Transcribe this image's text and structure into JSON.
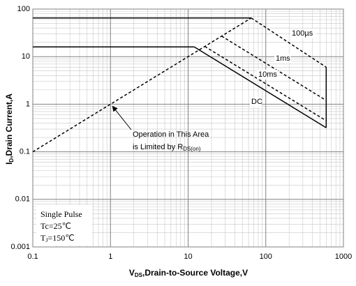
{
  "chart_data": {
    "type": "line",
    "xlabel": {
      "main": "V",
      "sub": "DS",
      "rest": ",Drain-to-Source Voltage,V"
    },
    "ylabel": {
      "main": "I",
      "sub": "D",
      "rest": ",Drain Current,A"
    },
    "log_x": true,
    "log_y": true,
    "grid": true,
    "xlim": [
      0.1,
      1000
    ],
    "ylim": [
      0.001,
      100
    ],
    "xticks": [
      0.1,
      1,
      10,
      100,
      1000
    ],
    "yticks": [
      0.001,
      0.01,
      0.1,
      1,
      10,
      100
    ],
    "series": [
      {
        "color": "#000000",
        "x": [
          0.1,
          65
        ],
        "values": [
          0.1,
          65
        ],
        "dashed": [
          true
        ]
      },
      {
        "name": "100µs",
        "color": "#000000",
        "x": [
          0.1,
          65,
          600,
          600
        ],
        "values": [
          65,
          65,
          6,
          0.32
        ],
        "dashed": [
          false,
          true,
          false
        ]
      },
      {
        "name": "1ms",
        "color": "#000000",
        "x": [
          27,
          600
        ],
        "values": [
          27,
          1.2
        ],
        "dashed": [
          true
        ]
      },
      {
        "name": "10ms",
        "color": "#000000",
        "x": [
          16.4,
          600
        ],
        "values": [
          16.4,
          0.45
        ],
        "dashed": [
          true
        ]
      },
      {
        "name": "DC",
        "color": "#000000",
        "x": [
          0.1,
          12,
          600
        ],
        "values": [
          16,
          16,
          0.32
        ],
        "dashed": [
          false,
          false
        ]
      }
    ],
    "annotation": {
      "line1": "Operation in This Area",
      "line2": "is Limited by R",
      "sub": "DS(on)",
      "x": 1,
      "y": 1
    },
    "conditions": {
      "line1": "Single Pulse",
      "line2": "Tc=25℃",
      "line3_main": "T",
      "line3_sub": "J",
      "line3_rest": "=150℃"
    }
  }
}
